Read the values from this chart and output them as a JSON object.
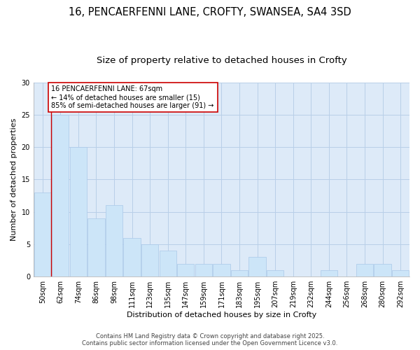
{
  "title_line1": "16, PENCAERFENNI LANE, CROFTY, SWANSEA, SA4 3SD",
  "title_line2": "Size of property relative to detached houses in Crofty",
  "xlabel": "Distribution of detached houses by size in Crofty",
  "ylabel": "Number of detached properties",
  "categories": [
    "50sqm",
    "62sqm",
    "74sqm",
    "86sqm",
    "98sqm",
    "111sqm",
    "123sqm",
    "135sqm",
    "147sqm",
    "159sqm",
    "171sqm",
    "183sqm",
    "195sqm",
    "207sqm",
    "219sqm",
    "232sqm",
    "244sqm",
    "256sqm",
    "268sqm",
    "280sqm",
    "292sqm"
  ],
  "values": [
    13,
    25,
    20,
    9,
    11,
    6,
    5,
    4,
    2,
    2,
    2,
    1,
    3,
    1,
    0,
    0,
    1,
    0,
    2,
    2,
    1
  ],
  "bar_color": "#cce5f8",
  "bar_edge_color": "#aac8e8",
  "grid_color": "#b8cfe8",
  "plot_bg_color": "#ddeaf8",
  "fig_bg_color": "#ffffff",
  "vline_x": 1.5,
  "vline_color": "#cc0000",
  "annotation_text": "16 PENCAERFENNI LANE: 67sqm\n← 14% of detached houses are smaller (15)\n85% of semi-detached houses are larger (91) →",
  "annotation_box_color": "#ffffff",
  "annotation_box_edge": "#cc0000",
  "ylim": [
    0,
    30
  ],
  "yticks": [
    0,
    5,
    10,
    15,
    20,
    25,
    30
  ],
  "footer_line1": "Contains HM Land Registry data © Crown copyright and database right 2025.",
  "footer_line2": "Contains public sector information licensed under the Open Government Licence v3.0.",
  "title_fontsize": 10.5,
  "subtitle_fontsize": 9.5,
  "axis_label_fontsize": 8,
  "tick_fontsize": 7,
  "annotation_fontsize": 7,
  "footer_fontsize": 6
}
